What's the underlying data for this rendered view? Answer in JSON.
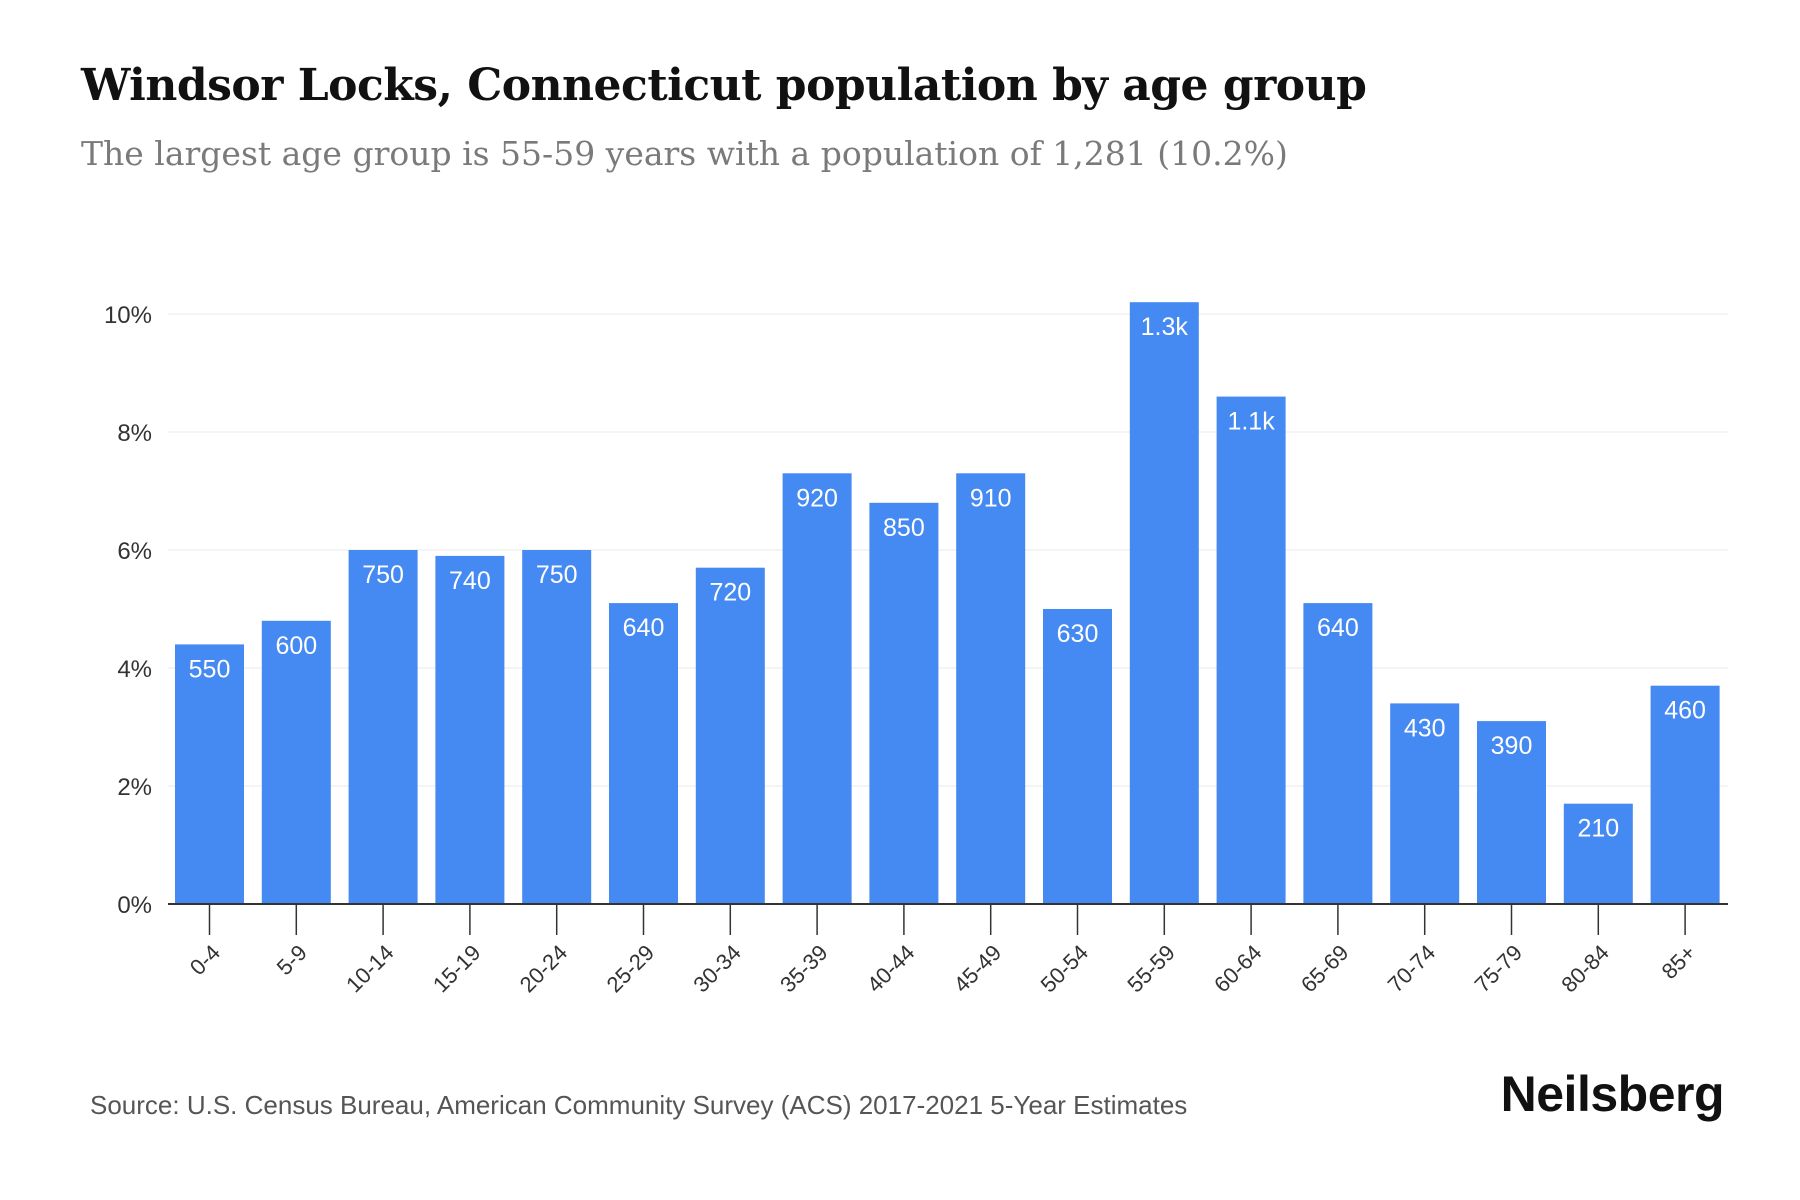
{
  "title": "Windsor Locks, Connecticut population by age group",
  "subtitle": "The largest age group is 55-59 years with a population of 1,281 (10.2%)",
  "source": "Source: U.S. Census Bureau, American Community Survey (ACS) 2017-2021 5-Year Estimates",
  "brand": "Neilsberg",
  "colors": {
    "bar": "#4589f2",
    "bar_label": "#ffffff",
    "grid": "#e8e8e8",
    "axis": "#333333",
    "text": "#333333"
  },
  "chart_data": {
    "type": "bar",
    "categories": [
      "0-4",
      "5-9",
      "10-14",
      "15-19",
      "20-24",
      "25-29",
      "30-34",
      "35-39",
      "40-44",
      "45-49",
      "50-54",
      "55-59",
      "60-64",
      "65-69",
      "70-74",
      "75-79",
      "80-84",
      "85+"
    ],
    "values": [
      4.4,
      4.8,
      6.0,
      5.9,
      6.0,
      5.1,
      5.7,
      7.3,
      6.8,
      7.3,
      5.0,
      10.2,
      8.6,
      5.1,
      3.4,
      3.1,
      1.7,
      3.7
    ],
    "data_labels": [
      "550",
      "600",
      "750",
      "740",
      "750",
      "640",
      "720",
      "920",
      "850",
      "910",
      "630",
      "1.3k",
      "1.1k",
      "640",
      "430",
      "390",
      "210",
      "460"
    ],
    "ylim": [
      0,
      10
    ],
    "yticks": [
      "0%",
      "2%",
      "4%",
      "6%",
      "8%",
      "10%"
    ],
    "ytick_values": [
      0,
      2,
      4,
      6,
      8,
      10
    ],
    "xlabel": "",
    "ylabel": "",
    "grid": true
  }
}
